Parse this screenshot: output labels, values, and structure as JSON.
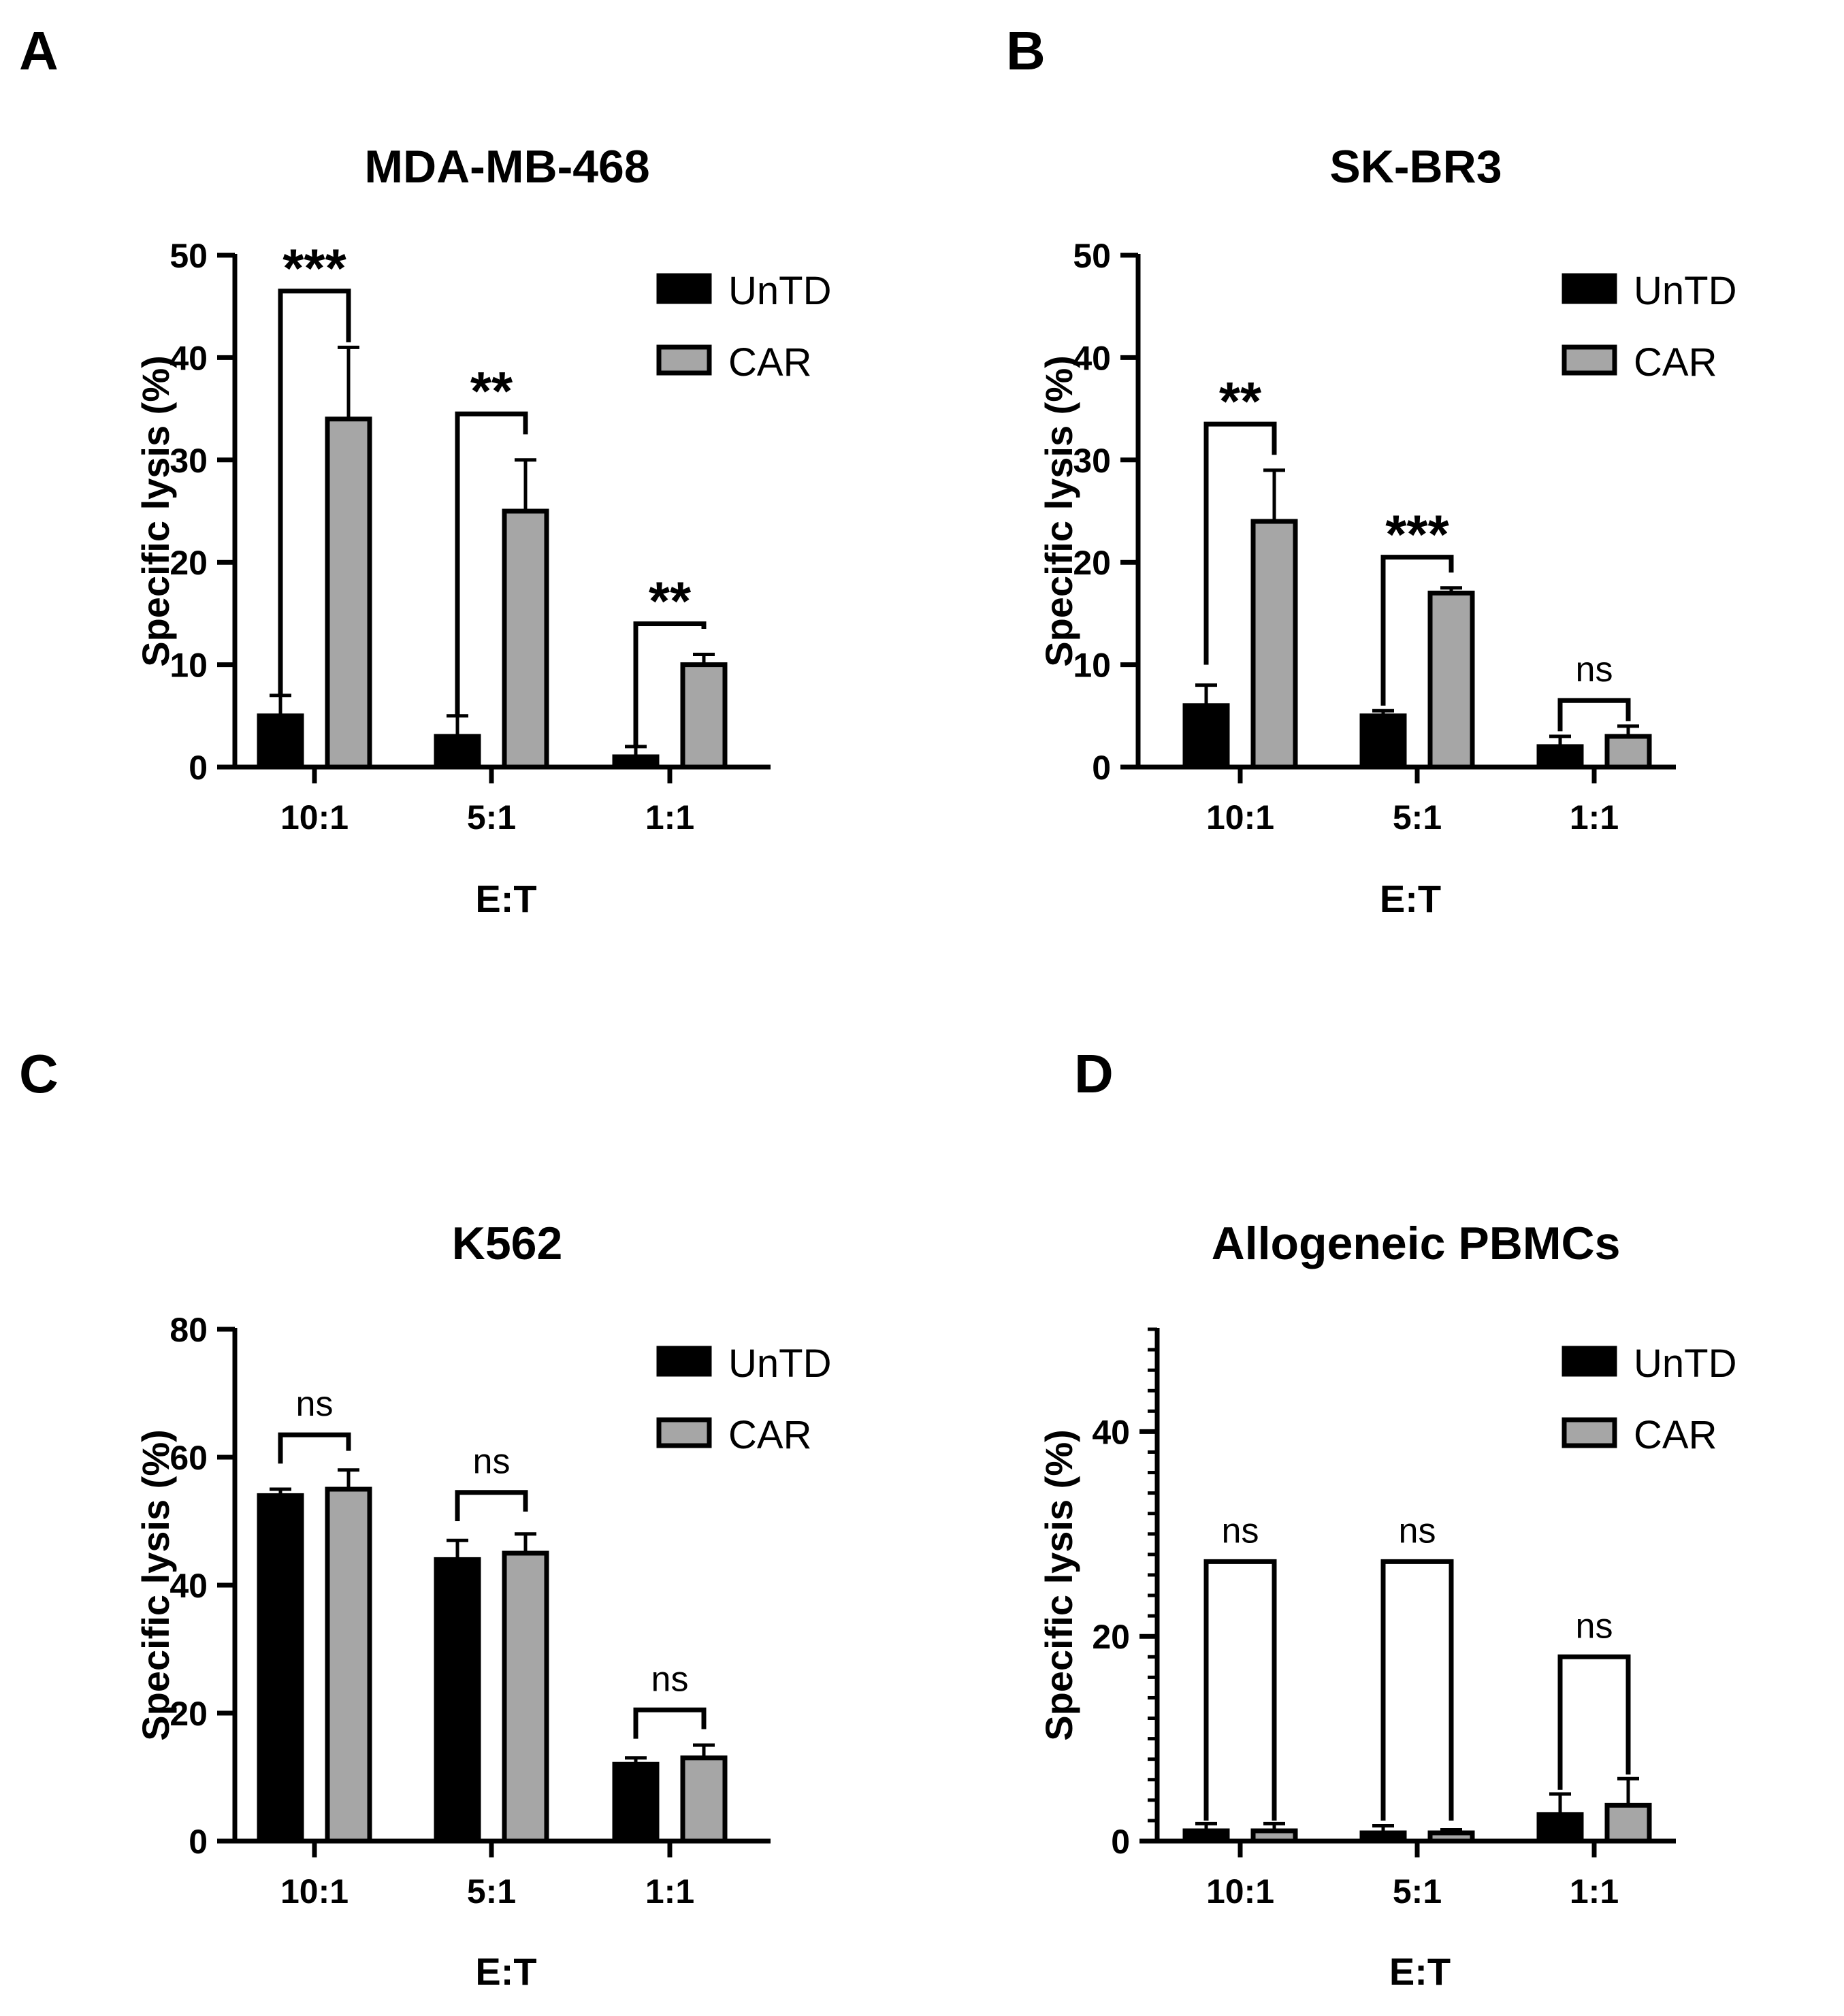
{
  "figure": {
    "background": "#ffffff"
  },
  "series_colors": {
    "UnTD": "#000000",
    "CAR": "#a6a6a6"
  },
  "chart_data": [
    {
      "panel": "A",
      "type": "bar",
      "title": "MDA-MB-468",
      "xlabel": "E:T",
      "ylabel": "Specific lysis  (%)",
      "categories": [
        "10:1",
        "5:1",
        "1:1"
      ],
      "ylim": [
        0,
        50
      ],
      "yticks": [
        0,
        10,
        20,
        30,
        40,
        50
      ],
      "minor_ticks": false,
      "series": [
        {
          "name": "UnTD",
          "values": [
            5,
            3,
            1
          ],
          "errors": [
            2,
            2,
            1
          ]
        },
        {
          "name": "CAR",
          "values": [
            34,
            25,
            10
          ],
          "errors": [
            7,
            5,
            1
          ]
        }
      ],
      "significance": [
        {
          "category": "10:1",
          "label": "***",
          "top": 46.5,
          "left_end": 7,
          "right_end": 41.5
        },
        {
          "category": "5:1",
          "label": "**",
          "top": 34.5,
          "left_end": 5,
          "right_end": 32.5
        },
        {
          "category": "1:1",
          "label": "**",
          "top": 14,
          "left_end": 2,
          "right_end": 13.5
        }
      ],
      "legend": {
        "position": "top-right",
        "entries": [
          "UnTD",
          "CAR"
        ]
      }
    },
    {
      "panel": "B",
      "type": "bar",
      "title": "SK-BR3",
      "xlabel": "E:T",
      "ylabel": "Specific lysis  (%)",
      "categories": [
        "10:1",
        "5:1",
        "1:1"
      ],
      "ylim": [
        0,
        50
      ],
      "yticks": [
        0,
        10,
        20,
        30,
        40,
        50
      ],
      "minor_ticks": false,
      "series": [
        {
          "name": "UnTD",
          "values": [
            6,
            5,
            2
          ],
          "errors": [
            2,
            0.5,
            1
          ]
        },
        {
          "name": "CAR",
          "values": [
            24,
            17,
            3
          ],
          "errors": [
            5,
            0.5,
            1
          ]
        }
      ],
      "significance": [
        {
          "category": "10:1",
          "label": "**",
          "top": 33.5,
          "left_end": 10,
          "right_end": 30.5
        },
        {
          "category": "5:1",
          "label": "***",
          "top": 20.5,
          "left_end": 6,
          "right_end": 19
        },
        {
          "category": "1:1",
          "label": "ns",
          "top": 6.5,
          "left_end": 3.5,
          "right_end": 4.5
        }
      ],
      "legend": {
        "position": "top-right",
        "entries": [
          "UnTD",
          "CAR"
        ]
      }
    },
    {
      "panel": "C",
      "type": "bar",
      "title": "K562",
      "xlabel": "E:T",
      "ylabel": "Specific lysis  (%)",
      "categories": [
        "10:1",
        "5:1",
        "1:1"
      ],
      "ylim": [
        0,
        80
      ],
      "yticks": [
        0,
        20,
        40,
        60,
        80
      ],
      "minor_ticks": false,
      "series": [
        {
          "name": "UnTD",
          "values": [
            54,
            44,
            12
          ],
          "errors": [
            1,
            3,
            1
          ]
        },
        {
          "name": "CAR",
          "values": [
            55,
            45,
            13
          ],
          "errors": [
            3,
            3,
            2
          ]
        }
      ],
      "significance": [
        {
          "category": "10:1",
          "label": "ns",
          "top": 63.5,
          "left_end": 59,
          "right_end": 61
        },
        {
          "category": "5:1",
          "label": "ns",
          "top": 54.5,
          "left_end": 50,
          "right_end": 51.5
        },
        {
          "category": "1:1",
          "label": "ns",
          "top": 20.5,
          "left_end": 16,
          "right_end": 17.5
        }
      ],
      "legend": {
        "position": "top-right",
        "entries": [
          "UnTD",
          "CAR"
        ]
      }
    },
    {
      "panel": "D",
      "type": "bar",
      "title": "Allogeneic PBMCs",
      "xlabel": "E:T",
      "ylabel": "Specific lysis  (%)",
      "categories": [
        "10:1",
        "5:1",
        "1:1"
      ],
      "ylim": [
        0,
        50
      ],
      "yticks": [
        0,
        20,
        40
      ],
      "minor_ticks": true,
      "series": [
        {
          "name": "UnTD",
          "values": [
            1,
            0.8,
            2.6
          ],
          "errors": [
            0.7,
            0.7,
            2
          ]
        },
        {
          "name": "CAR",
          "values": [
            1,
            0.8,
            3.5
          ],
          "errors": [
            0.7,
            0.3,
            2.6
          ]
        }
      ],
      "significance": [
        {
          "category": "10:1",
          "label": "ns",
          "top": 27.3,
          "left_end": 2,
          "right_end": 2
        },
        {
          "category": "5:1",
          "label": "ns",
          "top": 27.3,
          "left_end": 2,
          "right_end": 2
        },
        {
          "category": "1:1",
          "label": "ns",
          "top": 18,
          "left_end": 5,
          "right_end": 6.5
        }
      ],
      "legend": {
        "position": "top-right",
        "entries": [
          "UnTD",
          "CAR"
        ]
      }
    }
  ]
}
